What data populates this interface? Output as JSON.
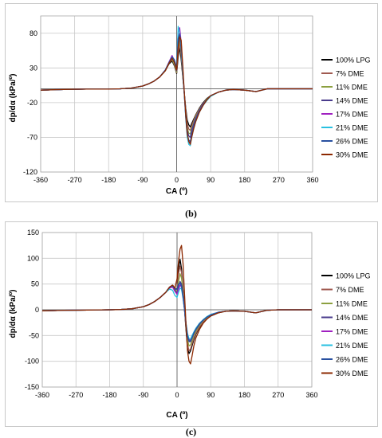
{
  "colors": {
    "100% LPG": "#000000",
    "7% DME": "#a05a50",
    "11% DME": "#8ca040",
    "14% DME": "#4a3c8c",
    "17% DME": "#a020c0",
    "21% DME": "#28c0e0",
    "26% DME": "#2850a0",
    "30% DME": "#8c2800"
  },
  "chart_data": [
    {
      "id": "b",
      "caption": "(b)",
      "type": "line",
      "xlabel": "CA (º)",
      "ylabel": "dp/dα (kPa/º)",
      "xlim": [
        -360,
        360
      ],
      "ylim": [
        -120,
        105
      ],
      "xticks": [
        -360,
        -270,
        -180,
        -90,
        0,
        90,
        180,
        270,
        360
      ],
      "yticks": [
        -120,
        -70,
        -20,
        30,
        80
      ],
      "grid": true,
      "legend": "right",
      "x": [
        -360,
        -300,
        -240,
        -180,
        -150,
        -120,
        -90,
        -75,
        -60,
        -45,
        -30,
        -20,
        -12,
        -6,
        0,
        4,
        8,
        12,
        16,
        20,
        24,
        28,
        32,
        36,
        40,
        45,
        50,
        60,
        70,
        80,
        90,
        110,
        130,
        150,
        180,
        210,
        240,
        270,
        300,
        330,
        360
      ],
      "series": [
        {
          "name": "100% LPG",
          "values": [
            -2,
            -1,
            -0.5,
            -0.5,
            0,
            1,
            4,
            7,
            11,
            17,
            26,
            36,
            40,
            33,
            22,
            45,
            60,
            42,
            18,
            -5,
            -28,
            -45,
            -52,
            -55,
            -50,
            -44,
            -38,
            -28,
            -20,
            -14,
            -10,
            -5,
            -2,
            -1,
            -2,
            -4,
            0,
            0,
            0,
            0,
            0
          ]
        },
        {
          "name": "7% DME",
          "values": [
            -2,
            -1,
            -0.5,
            -0.5,
            0,
            1,
            4,
            7,
            11,
            17,
            26,
            37,
            42,
            34,
            23,
            50,
            65,
            48,
            20,
            -5,
            -30,
            -50,
            -58,
            -60,
            -53,
            -46,
            -39,
            -29,
            -21,
            -15,
            -10,
            -5,
            -2,
            -1,
            -2,
            -4,
            0,
            0,
            0,
            0,
            0
          ]
        },
        {
          "name": "11% DME",
          "values": [
            -2,
            -1,
            -0.5,
            -0.5,
            0,
            1,
            4,
            7,
            11,
            17,
            26,
            37,
            43,
            35,
            24,
            58,
            72,
            52,
            22,
            -5,
            -34,
            -56,
            -64,
            -65,
            -57,
            -49,
            -41,
            -30,
            -22,
            -15,
            -10,
            -5,
            -2,
            -1,
            -2,
            -4,
            0,
            0,
            0,
            0,
            0
          ]
        },
        {
          "name": "14% DME",
          "values": [
            -2,
            -1,
            -0.5,
            -0.5,
            0,
            1,
            4,
            7,
            11,
            17,
            27,
            38,
            45,
            38,
            26,
            66,
            78,
            56,
            24,
            -5,
            -36,
            -60,
            -68,
            -70,
            -60,
            -51,
            -43,
            -31,
            -22,
            -16,
            -10,
            -5,
            -2,
            -1,
            -2,
            -4,
            0,
            0,
            0,
            0,
            0
          ]
        },
        {
          "name": "17% DME",
          "values": [
            -2,
            -1,
            -0.5,
            -0.5,
            0,
            1,
            4,
            7,
            11,
            17,
            27,
            39,
            48,
            40,
            28,
            82,
            88,
            66,
            28,
            -6,
            -40,
            -66,
            -76,
            -78,
            -66,
            -55,
            -46,
            -33,
            -23,
            -16,
            -10,
            -5,
            -2,
            -1,
            -2,
            -4,
            0,
            0,
            0,
            0,
            0
          ]
        },
        {
          "name": "21% DME",
          "values": [
            -2,
            -1,
            -0.5,
            -0.5,
            0,
            1,
            4,
            7,
            11,
            17,
            27,
            38,
            46,
            41,
            30,
            90,
            80,
            62,
            26,
            -6,
            -42,
            -70,
            -80,
            -82,
            -70,
            -58,
            -48,
            -34,
            -24,
            -17,
            -11,
            -5,
            -2,
            -1,
            -2,
            -4,
            0,
            0,
            0,
            0,
            0
          ]
        },
        {
          "name": "26% DME",
          "values": [
            -2,
            -1,
            -0.5,
            -0.5,
            0,
            1,
            4,
            7,
            11,
            17,
            27,
            38,
            46,
            42,
            31,
            72,
            80,
            64,
            30,
            -5,
            -40,
            -66,
            -74,
            -76,
            -66,
            -55,
            -46,
            -33,
            -23,
            -16,
            -10,
            -5,
            -2,
            -1,
            -2,
            -4,
            0,
            0,
            0,
            0,
            0
          ]
        },
        {
          "name": "30% DME",
          "values": [
            -2,
            -1,
            -0.5,
            -0.5,
            0,
            1,
            4,
            7,
            11,
            17,
            26,
            37,
            44,
            38,
            27,
            60,
            75,
            70,
            35,
            -3,
            -38,
            -64,
            -76,
            -80,
            -70,
            -58,
            -48,
            -34,
            -24,
            -16,
            -10,
            -5,
            -2,
            -1,
            -2,
            -4,
            0,
            0,
            0,
            0,
            0
          ]
        }
      ]
    },
    {
      "id": "c",
      "caption": "(c)",
      "type": "line",
      "xlabel": "CA (º)",
      "ylabel": "dp/dα (kPa/º)",
      "xlim": [
        -360,
        360
      ],
      "ylim": [
        -150,
        150
      ],
      "xticks": [
        -360,
        -270,
        -180,
        -90,
        0,
        90,
        180,
        270,
        360
      ],
      "yticks": [
        -150,
        -100,
        -50,
        0,
        50,
        100,
        150
      ],
      "grid": true,
      "legend": "right",
      "x": [
        -360,
        -300,
        -240,
        -180,
        -150,
        -120,
        -90,
        -75,
        -60,
        -45,
        -30,
        -20,
        -12,
        -6,
        0,
        4,
        8,
        12,
        16,
        20,
        24,
        28,
        32,
        36,
        40,
        45,
        50,
        60,
        70,
        80,
        90,
        110,
        130,
        150,
        180,
        210,
        240,
        270,
        300,
        330,
        360
      ],
      "series": [
        {
          "name": "100% LPG",
          "values": [
            -2,
            -1,
            -0.5,
            0,
            0.5,
            2,
            6,
            10,
            16,
            24,
            34,
            44,
            48,
            42,
            40,
            80,
            98,
            80,
            40,
            0,
            -40,
            -72,
            -85,
            -80,
            -70,
            -58,
            -48,
            -34,
            -24,
            -17,
            -12,
            -6,
            -3,
            -2,
            -3,
            -6,
            -1,
            0,
            0,
            0,
            0
          ]
        },
        {
          "name": "7% DME",
          "values": [
            -2,
            -1,
            -0.5,
            0,
            0.5,
            2,
            6,
            10,
            16,
            24,
            34,
            44,
            48,
            42,
            38,
            70,
            85,
            72,
            36,
            0,
            -36,
            -66,
            -80,
            -76,
            -66,
            -55,
            -46,
            -33,
            -23,
            -16,
            -11,
            -6,
            -3,
            -2,
            -3,
            -6,
            -1,
            0,
            0,
            0,
            0
          ]
        },
        {
          "name": "11% DME",
          "values": [
            -2,
            -1,
            -0.5,
            0,
            0.5,
            2,
            6,
            10,
            16,
            24,
            34,
            44,
            47,
            40,
            34,
            55,
            70,
            62,
            32,
            0,
            -32,
            -58,
            -70,
            -68,
            -60,
            -50,
            -42,
            -30,
            -21,
            -15,
            -10,
            -5,
            -3,
            -2,
            -3,
            -6,
            -1,
            0,
            0,
            0,
            0
          ]
        },
        {
          "name": "14% DME",
          "values": [
            -2,
            -1,
            -0.5,
            0,
            0.5,
            2,
            6,
            10,
            16,
            24,
            34,
            43,
            46,
            38,
            32,
            46,
            55,
            50,
            28,
            0,
            -30,
            -52,
            -62,
            -62,
            -55,
            -46,
            -39,
            -28,
            -20,
            -14,
            -10,
            -5,
            -3,
            -2,
            -3,
            -6,
            -1,
            0,
            0,
            0,
            0
          ]
        },
        {
          "name": "17% DME",
          "values": [
            -2,
            -1,
            -0.5,
            0,
            0.5,
            2,
            6,
            10,
            16,
            24,
            34,
            42,
            44,
            36,
            30,
            40,
            48,
            44,
            25,
            0,
            -28,
            -48,
            -58,
            -58,
            -52,
            -44,
            -37,
            -27,
            -19,
            -14,
            -9,
            -5,
            -3,
            -2,
            -3,
            -6,
            -1,
            0,
            0,
            0,
            0
          ]
        },
        {
          "name": "21% DME",
          "values": [
            -2,
            -1,
            -0.5,
            0,
            0.5,
            2,
            6,
            10,
            16,
            24,
            34,
            40,
            38,
            28,
            24,
            34,
            42,
            40,
            22,
            0,
            -26,
            -46,
            -56,
            -57,
            -50,
            -43,
            -36,
            -26,
            -19,
            -13,
            -9,
            -5,
            -3,
            -2,
            -3,
            -6,
            -1,
            0,
            0,
            0,
            0
          ]
        },
        {
          "name": "26% DME",
          "values": [
            -2,
            -1,
            -0.5,
            0,
            0.5,
            2,
            6,
            10,
            16,
            24,
            34,
            44,
            46,
            40,
            40,
            50,
            52,
            45,
            25,
            0,
            -28,
            -50,
            -60,
            -60,
            -54,
            -45,
            -38,
            -27,
            -20,
            -14,
            -10,
            -5,
            -3,
            -2,
            -3,
            -6,
            -1,
            0,
            0,
            0,
            0
          ]
        },
        {
          "name": "30% DME",
          "values": [
            -2,
            -1,
            -0.5,
            0,
            0.5,
            2,
            6,
            10,
            16,
            24,
            34,
            44,
            48,
            42,
            60,
            95,
            118,
            125,
            90,
            30,
            -30,
            -80,
            -100,
            -105,
            -90,
            -70,
            -55,
            -38,
            -26,
            -18,
            -12,
            -6,
            -3,
            -2,
            -3,
            -6,
            -1,
            0,
            0,
            0,
            0
          ]
        }
      ]
    }
  ]
}
